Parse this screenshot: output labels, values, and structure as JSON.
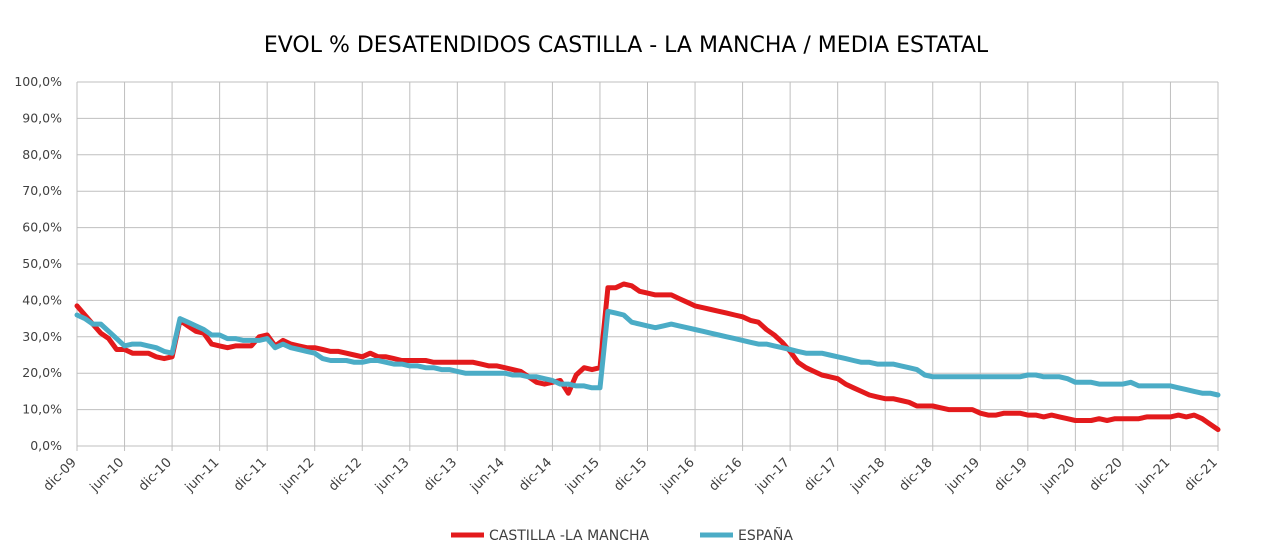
{
  "chart_data": {
    "type": "line",
    "title": "EVOL % DESATENDIDOS CASTILLA - LA MANCHA / MEDIA ESTATAL",
    "xlabel": "",
    "ylabel": "",
    "ylim": [
      0,
      100
    ],
    "y_ticks": [
      "0,0%",
      "10,0%",
      "20,0%",
      "30,0%",
      "40,0%",
      "50,0%",
      "60,0%",
      "70,0%",
      "80,0%",
      "90,0%",
      "100,0%"
    ],
    "x_ticks": [
      "dic-09",
      "jun-10",
      "dic-10",
      "jun-11",
      "dic-11",
      "jun-12",
      "dic-12",
      "jun-13",
      "dic-13",
      "jun-14",
      "dic-14",
      "jun-15",
      "dic-15",
      "jun-16",
      "dic-16",
      "jun-17",
      "dic-17",
      "jun-18",
      "dic-18",
      "jun-19",
      "dic-19",
      "jun-20",
      "dic-20",
      "jun-21",
      "dic-21"
    ],
    "grid": true,
    "legend_position": "bottom",
    "series": [
      {
        "name": "CASTILLA -LA MANCHA",
        "color": "#e31a1c",
        "points": [
          [
            "dic-09",
            38.5
          ],
          [
            "ene-10",
            36
          ],
          [
            "feb-10",
            33.5
          ],
          [
            "mar-10",
            31
          ],
          [
            "abr-10",
            29.5
          ],
          [
            "may-10",
            26.5
          ],
          [
            "jun-10",
            26.5
          ],
          [
            "jul-10",
            25.5
          ],
          [
            "ago-10",
            25.5
          ],
          [
            "sep-10",
            25.5
          ],
          [
            "oct-10",
            24.5
          ],
          [
            "nov-10",
            24
          ],
          [
            "dic-10",
            24.5
          ],
          [
            "ene-11",
            34.5
          ],
          [
            "feb-11",
            33
          ],
          [
            "mar-11",
            31.5
          ],
          [
            "abr-11",
            31
          ],
          [
            "may-11",
            28
          ],
          [
            "jun-11",
            27.5
          ],
          [
            "jul-11",
            27
          ],
          [
            "ago-11",
            27.5
          ],
          [
            "sep-11",
            27.5
          ],
          [
            "oct-11",
            27.5
          ],
          [
            "nov-11",
            30
          ],
          [
            "dic-11",
            30.5
          ],
          [
            "ene-12",
            27.5
          ],
          [
            "feb-12",
            29
          ],
          [
            "mar-12",
            28
          ],
          [
            "abr-12",
            27.5
          ],
          [
            "may-12",
            27
          ],
          [
            "jun-12",
            27
          ],
          [
            "jul-12",
            26.5
          ],
          [
            "ago-12",
            26
          ],
          [
            "sep-12",
            26
          ],
          [
            "oct-12",
            25.5
          ],
          [
            "nov-12",
            25
          ],
          [
            "dic-12",
            24.5
          ],
          [
            "ene-13",
            25.5
          ],
          [
            "feb-13",
            24.5
          ],
          [
            "mar-13",
            24.5
          ],
          [
            "abr-13",
            24
          ],
          [
            "may-13",
            23.5
          ],
          [
            "jun-13",
            23.5
          ],
          [
            "jul-13",
            23.5
          ],
          [
            "ago-13",
            23.5
          ],
          [
            "sep-13",
            23
          ],
          [
            "oct-13",
            23
          ],
          [
            "nov-13",
            23
          ],
          [
            "dic-13",
            23
          ],
          [
            "ene-14",
            23
          ],
          [
            "feb-14",
            23
          ],
          [
            "mar-14",
            22.5
          ],
          [
            "abr-14",
            22
          ],
          [
            "may-14",
            22
          ],
          [
            "jun-14",
            21.5
          ],
          [
            "jul-14",
            21
          ],
          [
            "ago-14",
            20.5
          ],
          [
            "sep-14",
            19
          ],
          [
            "oct-14",
            17.5
          ],
          [
            "nov-14",
            17
          ],
          [
            "dic-14",
            17.5
          ],
          [
            "ene-15",
            18
          ],
          [
            "feb-15",
            14.5
          ],
          [
            "mar-15",
            19.5
          ],
          [
            "abr-15",
            21.5
          ],
          [
            "may-15",
            21
          ],
          [
            "jun-15",
            21.5
          ],
          [
            "jul-15",
            43.5
          ],
          [
            "ago-15",
            43.5
          ],
          [
            "sep-15",
            44.5
          ],
          [
            "oct-15",
            44
          ],
          [
            "nov-15",
            42.5
          ],
          [
            "dic-15",
            42
          ],
          [
            "ene-16",
            41.5
          ],
          [
            "feb-16",
            41.5
          ],
          [
            "mar-16",
            41.5
          ],
          [
            "abr-16",
            40.5
          ],
          [
            "may-16",
            39.5
          ],
          [
            "jun-16",
            38.5
          ],
          [
            "jul-16",
            38
          ],
          [
            "ago-16",
            37.5
          ],
          [
            "sep-16",
            37
          ],
          [
            "oct-16",
            36.5
          ],
          [
            "nov-16",
            36
          ],
          [
            "dic-16",
            35.5
          ],
          [
            "ene-17",
            34.5
          ],
          [
            "feb-17",
            34
          ],
          [
            "mar-17",
            32
          ],
          [
            "abr-17",
            30.5
          ],
          [
            "may-17",
            28.5
          ],
          [
            "jun-17",
            26
          ],
          [
            "jul-17",
            23
          ],
          [
            "ago-17",
            21.5
          ],
          [
            "sep-17",
            20.5
          ],
          [
            "oct-17",
            19.5
          ],
          [
            "nov-17",
            19
          ],
          [
            "dic-17",
            18.5
          ],
          [
            "ene-18",
            17
          ],
          [
            "feb-18",
            16
          ],
          [
            "mar-18",
            15
          ],
          [
            "abr-18",
            14
          ],
          [
            "may-18",
            13.5
          ],
          [
            "jun-18",
            13
          ],
          [
            "jul-18",
            13
          ],
          [
            "ago-18",
            12.5
          ],
          [
            "sep-18",
            12
          ],
          [
            "oct-18",
            11
          ],
          [
            "nov-18",
            11
          ],
          [
            "dic-18",
            11
          ],
          [
            "ene-19",
            10.5
          ],
          [
            "feb-19",
            10
          ],
          [
            "mar-19",
            10
          ],
          [
            "abr-19",
            10
          ],
          [
            "may-19",
            10
          ],
          [
            "jun-19",
            9
          ],
          [
            "jul-19",
            8.5
          ],
          [
            "ago-19",
            8.5
          ],
          [
            "sep-19",
            9
          ],
          [
            "oct-19",
            9
          ],
          [
            "nov-19",
            9
          ],
          [
            "dic-19",
            8.5
          ],
          [
            "ene-20",
            8.5
          ],
          [
            "feb-20",
            8
          ],
          [
            "mar-20",
            8.5
          ],
          [
            "abr-20",
            8
          ],
          [
            "may-20",
            7.5
          ],
          [
            "jun-20",
            7
          ],
          [
            "jul-20",
            7
          ],
          [
            "ago-20",
            7
          ],
          [
            "sep-20",
            7.5
          ],
          [
            "oct-20",
            7
          ],
          [
            "nov-20",
            7.5
          ],
          [
            "dic-20",
            7.5
          ],
          [
            "ene-21",
            7.5
          ],
          [
            "feb-21",
            7.5
          ],
          [
            "mar-21",
            8
          ],
          [
            "abr-21",
            8
          ],
          [
            "may-21",
            8
          ],
          [
            "jun-21",
            8
          ],
          [
            "jul-21",
            8.5
          ],
          [
            "ago-21",
            8
          ],
          [
            "sep-21",
            8.5
          ],
          [
            "oct-21",
            7.5
          ],
          [
            "nov-21",
            6
          ],
          [
            "dic-21",
            4.5
          ]
        ]
      },
      {
        "name": "ESPAÑA",
        "color": "#4bacc6",
        "points": [
          [
            "dic-09",
            36
          ],
          [
            "ene-10",
            35
          ],
          [
            "feb-10",
            33.5
          ],
          [
            "mar-10",
            33.5
          ],
          [
            "abr-10",
            31.5
          ],
          [
            "may-10",
            29.5
          ],
          [
            "jun-10",
            27.5
          ],
          [
            "jul-10",
            28
          ],
          [
            "ago-10",
            28
          ],
          [
            "sep-10",
            27.5
          ],
          [
            "oct-10",
            27
          ],
          [
            "nov-10",
            26
          ],
          [
            "dic-10",
            25.5
          ],
          [
            "ene-11",
            35
          ],
          [
            "feb-11",
            34
          ],
          [
            "mar-11",
            33
          ],
          [
            "abr-11",
            32
          ],
          [
            "may-11",
            30.5
          ],
          [
            "jun-11",
            30.5
          ],
          [
            "jul-11",
            29.5
          ],
          [
            "ago-11",
            29.5
          ],
          [
            "sep-11",
            29
          ],
          [
            "oct-11",
            29
          ],
          [
            "nov-11",
            29
          ],
          [
            "dic-11",
            29.5
          ],
          [
            "ene-12",
            27
          ],
          [
            "feb-12",
            28
          ],
          [
            "mar-12",
            27
          ],
          [
            "abr-12",
            26.5
          ],
          [
            "may-12",
            26
          ],
          [
            "jun-12",
            25.5
          ],
          [
            "jul-12",
            24
          ],
          [
            "ago-12",
            23.5
          ],
          [
            "sep-12",
            23.5
          ],
          [
            "oct-12",
            23.5
          ],
          [
            "nov-12",
            23
          ],
          [
            "dic-12",
            23
          ],
          [
            "ene-13",
            23.5
          ],
          [
            "feb-13",
            23.5
          ],
          [
            "mar-13",
            23
          ],
          [
            "abr-13",
            22.5
          ],
          [
            "may-13",
            22.5
          ],
          [
            "jun-13",
            22
          ],
          [
            "jul-13",
            22
          ],
          [
            "ago-13",
            21.5
          ],
          [
            "sep-13",
            21.5
          ],
          [
            "oct-13",
            21
          ],
          [
            "nov-13",
            21
          ],
          [
            "dic-13",
            20.5
          ],
          [
            "ene-14",
            20
          ],
          [
            "feb-14",
            20
          ],
          [
            "mar-14",
            20
          ],
          [
            "abr-14",
            20
          ],
          [
            "may-14",
            20
          ],
          [
            "jun-14",
            20
          ],
          [
            "jul-14",
            19.5
          ],
          [
            "ago-14",
            19.5
          ],
          [
            "sep-14",
            19
          ],
          [
            "oct-14",
            19
          ],
          [
            "nov-14",
            18.5
          ],
          [
            "dic-14",
            18
          ],
          [
            "ene-15",
            17
          ],
          [
            "feb-15",
            17
          ],
          [
            "mar-15",
            16.5
          ],
          [
            "abr-15",
            16.5
          ],
          [
            "may-15",
            16
          ],
          [
            "jun-15",
            16
          ],
          [
            "jul-15",
            37
          ],
          [
            "ago-15",
            36.5
          ],
          [
            "sep-15",
            36
          ],
          [
            "oct-15",
            34
          ],
          [
            "nov-15",
            33.5
          ],
          [
            "dic-15",
            33
          ],
          [
            "ene-16",
            32.5
          ],
          [
            "feb-16",
            33
          ],
          [
            "mar-16",
            33.5
          ],
          [
            "abr-16",
            33
          ],
          [
            "may-16",
            32.5
          ],
          [
            "jun-16",
            32
          ],
          [
            "jul-16",
            31.5
          ],
          [
            "ago-16",
            31
          ],
          [
            "sep-16",
            30.5
          ],
          [
            "oct-16",
            30
          ],
          [
            "nov-16",
            29.5
          ],
          [
            "dic-16",
            29
          ],
          [
            "ene-17",
            28.5
          ],
          [
            "feb-17",
            28
          ],
          [
            "mar-17",
            28
          ],
          [
            "abr-17",
            27.5
          ],
          [
            "may-17",
            27
          ],
          [
            "jun-17",
            26.5
          ],
          [
            "jul-17",
            26
          ],
          [
            "ago-17",
            25.5
          ],
          [
            "sep-17",
            25.5
          ],
          [
            "oct-17",
            25.5
          ],
          [
            "nov-17",
            25
          ],
          [
            "dic-17",
            24.5
          ],
          [
            "ene-18",
            24
          ],
          [
            "feb-18",
            23.5
          ],
          [
            "mar-18",
            23
          ],
          [
            "abr-18",
            23
          ],
          [
            "may-18",
            22.5
          ],
          [
            "jun-18",
            22.5
          ],
          [
            "jul-18",
            22.5
          ],
          [
            "ago-18",
            22
          ],
          [
            "sep-18",
            21.5
          ],
          [
            "oct-18",
            21
          ],
          [
            "nov-18",
            19.5
          ],
          [
            "dic-18",
            19
          ],
          [
            "ene-19",
            19
          ],
          [
            "feb-19",
            19
          ],
          [
            "mar-19",
            19
          ],
          [
            "abr-19",
            19
          ],
          [
            "may-19",
            19
          ],
          [
            "jun-19",
            19
          ],
          [
            "jul-19",
            19
          ],
          [
            "ago-19",
            19
          ],
          [
            "sep-19",
            19
          ],
          [
            "oct-19",
            19
          ],
          [
            "nov-19",
            19
          ],
          [
            "dic-19",
            19.5
          ],
          [
            "ene-20",
            19.5
          ],
          [
            "feb-20",
            19
          ],
          [
            "mar-20",
            19
          ],
          [
            "abr-20",
            19
          ],
          [
            "may-20",
            18.5
          ],
          [
            "jun-20",
            17.5
          ],
          [
            "jul-20",
            17.5
          ],
          [
            "ago-20",
            17.5
          ],
          [
            "sep-20",
            17
          ],
          [
            "oct-20",
            17
          ],
          [
            "nov-20",
            17
          ],
          [
            "dic-20",
            17
          ],
          [
            "ene-21",
            17.5
          ],
          [
            "feb-21",
            16.5
          ],
          [
            "mar-21",
            16.5
          ],
          [
            "abr-21",
            16.5
          ],
          [
            "may-21",
            16.5
          ],
          [
            "jun-21",
            16.5
          ],
          [
            "jul-21",
            16
          ],
          [
            "ago-21",
            15.5
          ],
          [
            "sep-21",
            15
          ],
          [
            "oct-21",
            14.5
          ],
          [
            "nov-21",
            14.5
          ],
          [
            "dic-21",
            14
          ]
        ]
      }
    ]
  }
}
